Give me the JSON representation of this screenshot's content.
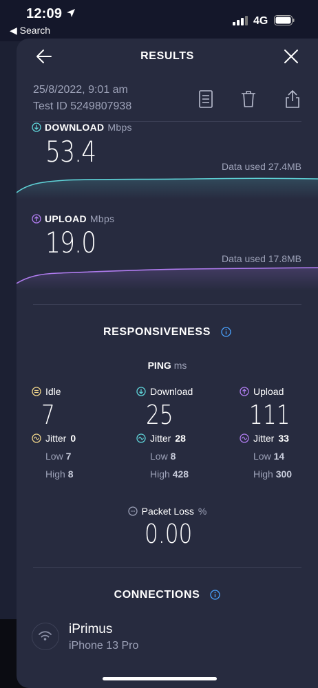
{
  "status_bar": {
    "time": "12:09",
    "back_label": "◀ Search",
    "network": "4G"
  },
  "header": {
    "title": "RESULTS"
  },
  "meta": {
    "date": "25/8/2022, 9:01 am",
    "test_id": "Test ID 5249807938"
  },
  "download": {
    "label": "DOWNLOAD",
    "unit": "Mbps",
    "value": "53.4",
    "data_used": "Data used 27.4MB"
  },
  "upload": {
    "label": "UPLOAD",
    "unit": "Mbps",
    "value": "19.0",
    "data_used": "Data used 17.8MB"
  },
  "responsiveness": {
    "title": "RESPONSIVENESS",
    "ping_label": "PING",
    "ping_unit": "ms",
    "columns": [
      {
        "label": "Idle",
        "value": "7",
        "jitter_label": "Jitter",
        "jitter": "0",
        "low_label": "Low",
        "low": "7",
        "high_label": "High",
        "high": "8"
      },
      {
        "label": "Download",
        "value": "25",
        "jitter_label": "Jitter",
        "jitter": "28",
        "low_label": "Low",
        "low": "8",
        "high_label": "High",
        "high": "428"
      },
      {
        "label": "Upload",
        "value": "111",
        "jitter_label": "Jitter",
        "jitter": "33",
        "low_label": "Low",
        "low": "14",
        "high_label": "High",
        "high": "300"
      }
    ],
    "packet_loss_label": "Packet Loss",
    "packet_loss_unit": "%",
    "packet_loss_value": "0.00"
  },
  "connections": {
    "title": "CONNECTIONS",
    "provider": "iPrimus",
    "device": "iPhone 13 Pro"
  },
  "colors": {
    "download": "#5fd3d8",
    "upload": "#b07cf0",
    "idle": "#f0d58a",
    "background": "#272b3f"
  }
}
